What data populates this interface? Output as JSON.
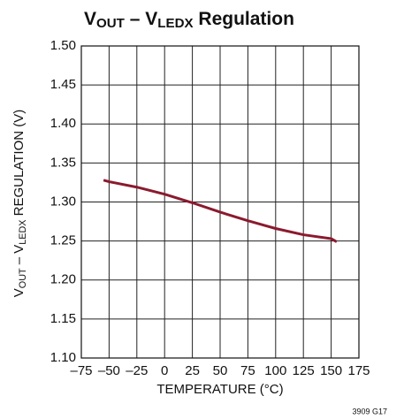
{
  "chart_data": {
    "type": "line",
    "title": [
      "V",
      "OUT",
      " – V",
      "LEDX",
      " Regulation"
    ],
    "ylabel": [
      "V",
      "OUT",
      " – V",
      "LEDX",
      " REGULATION (V)"
    ],
    "xlabel": "TEMPERATURE (°C)",
    "footnote": "3909 G17",
    "x": [
      -55,
      -50,
      -25,
      0,
      25,
      50,
      75,
      100,
      125,
      150,
      155
    ],
    "series": [
      {
        "name": "Regulation",
        "color": "#8b1a2e",
        "values": [
          1.328,
          1.326,
          1.319,
          1.31,
          1.299,
          1.287,
          1.276,
          1.266,
          1.258,
          1.253,
          1.249
        ]
      }
    ],
    "xlim": [
      -75,
      175
    ],
    "xticks": [
      {
        "value": -75,
        "label": "–75"
      },
      {
        "value": -50,
        "label": "–50"
      },
      {
        "value": -25,
        "label": "–25"
      },
      0,
      25,
      50,
      75,
      100,
      125,
      150,
      175
    ],
    "ylim": [
      1.1,
      1.5
    ],
    "yticks": [
      {
        "value": 1.1,
        "label": "1.10"
      },
      1.15,
      {
        "value": 1.2,
        "label": "1.20"
      },
      1.25,
      {
        "value": 1.3,
        "label": "1.30"
      },
      1.35,
      {
        "value": 1.4,
        "label": "1.40"
      },
      1.45,
      {
        "value": 1.5,
        "label": "1.50"
      }
    ],
    "grid": true
  }
}
